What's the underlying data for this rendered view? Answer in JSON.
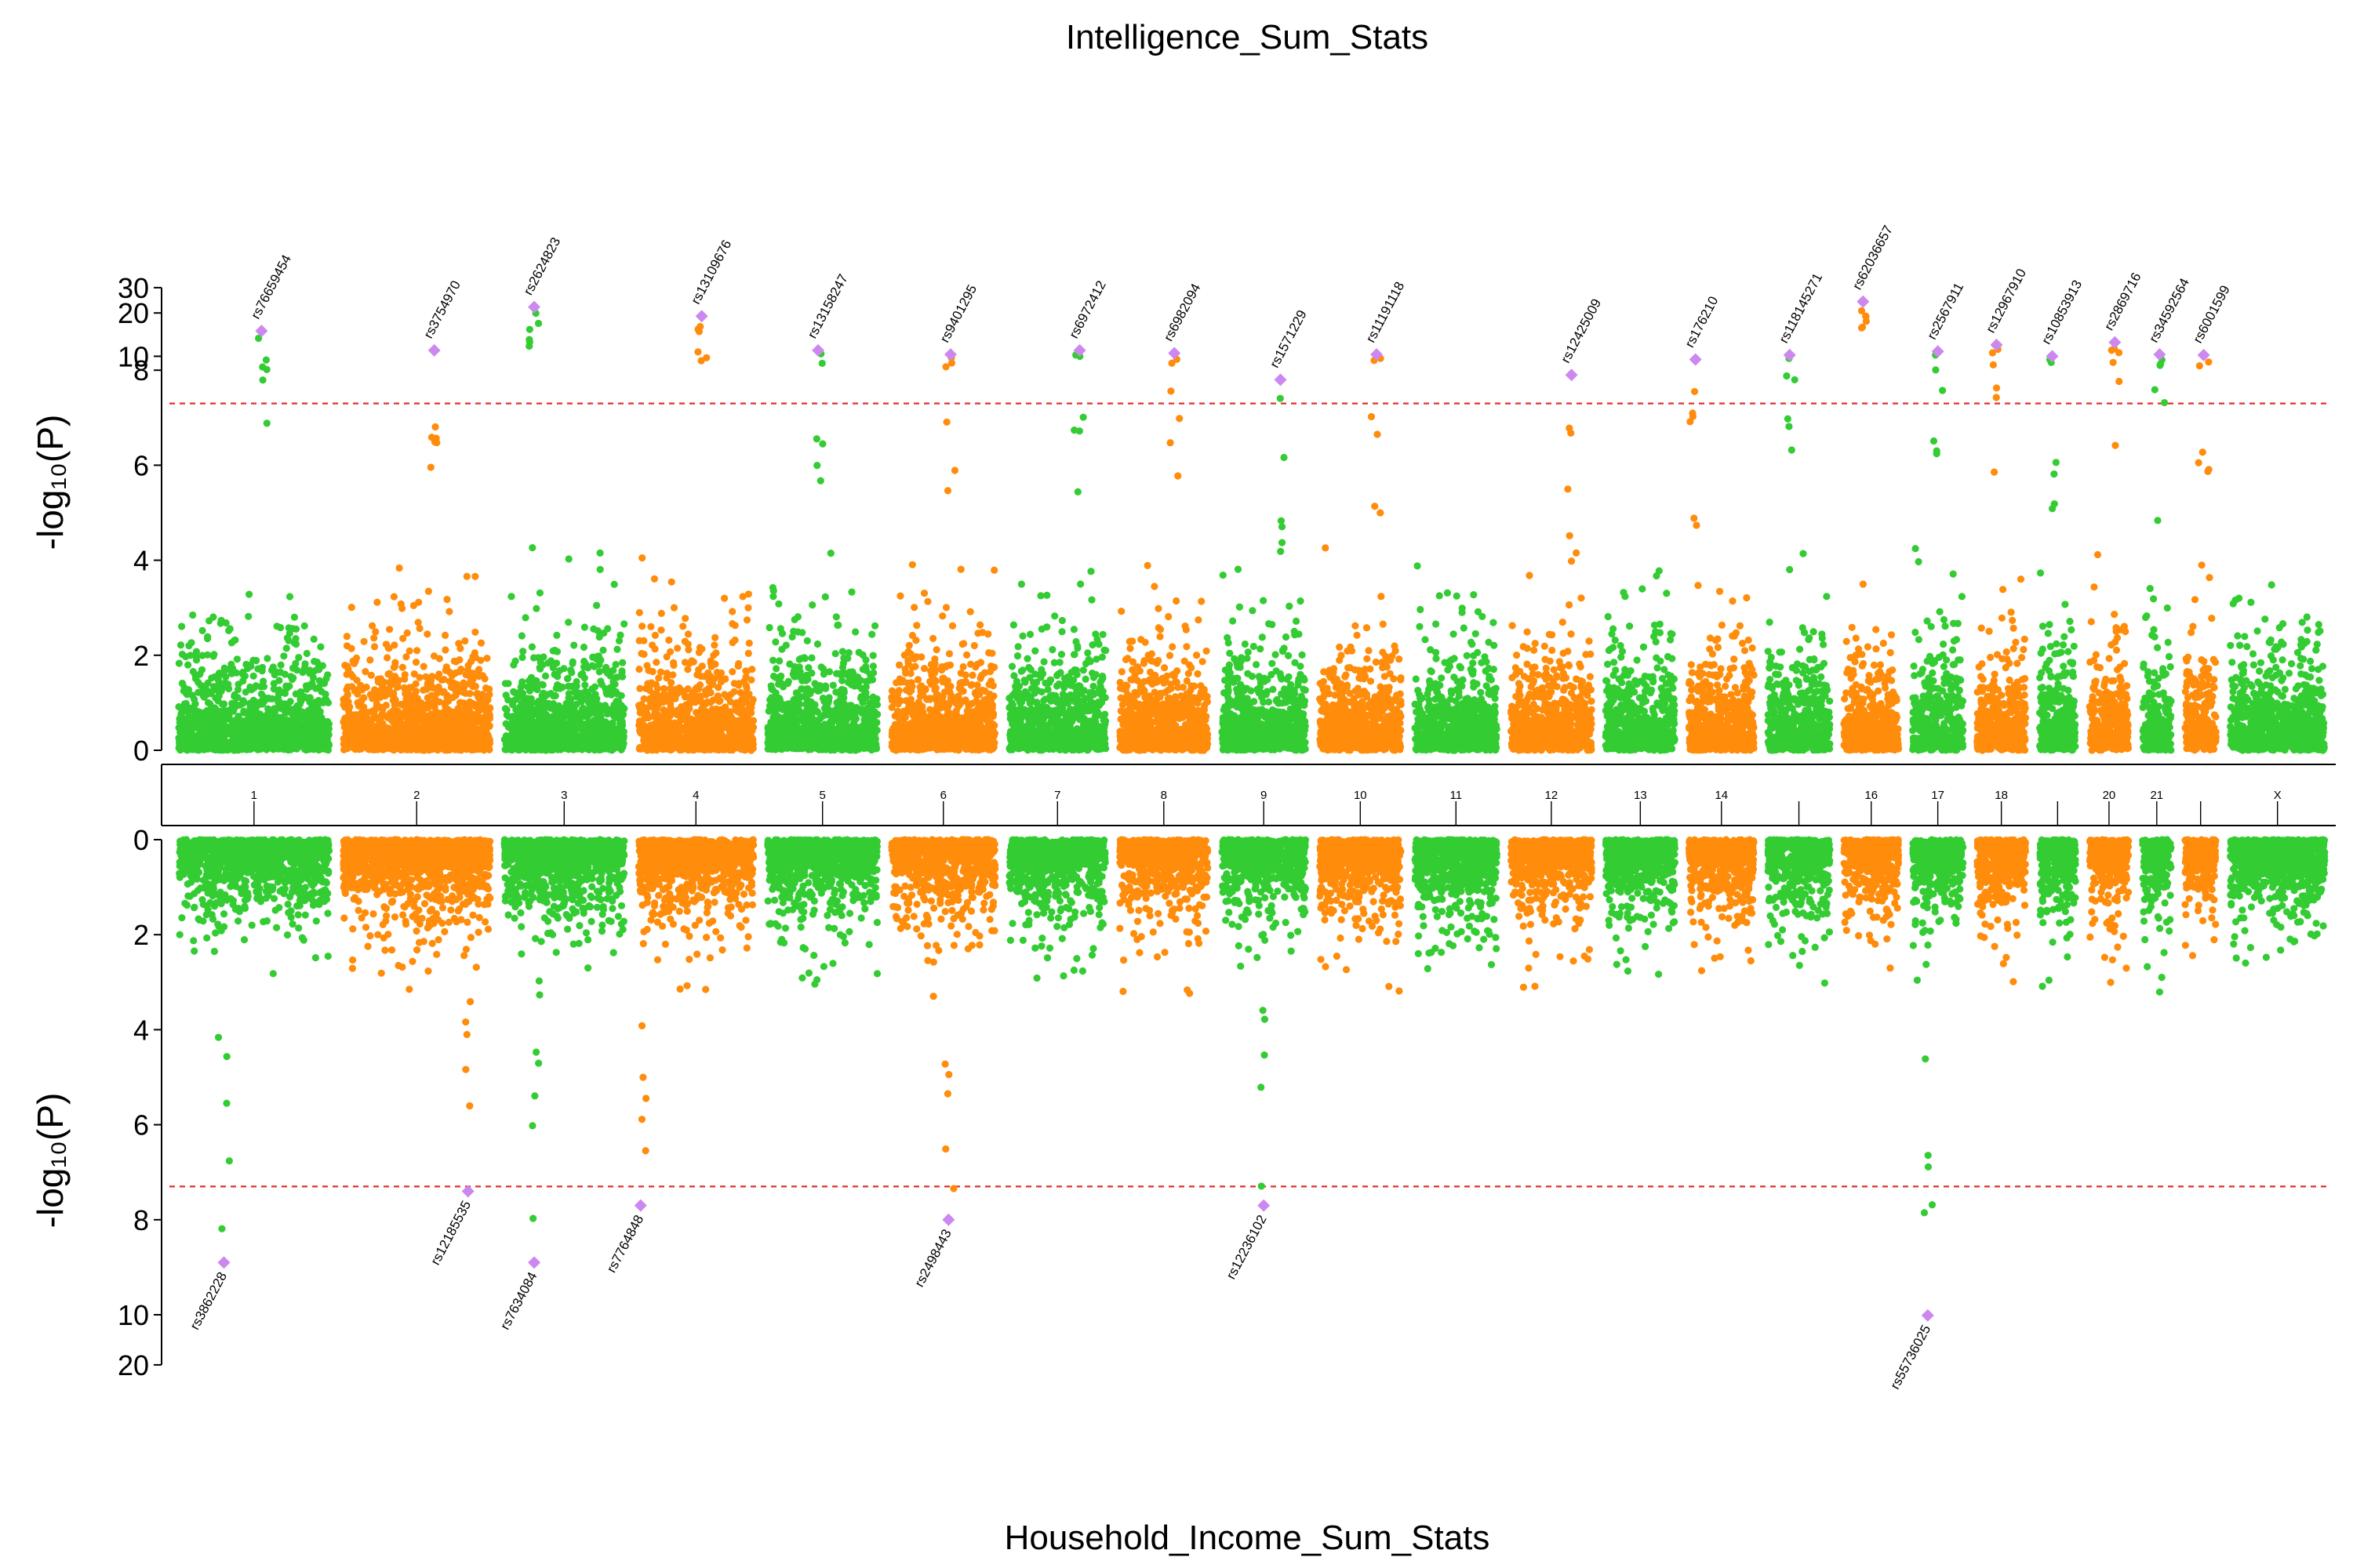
{
  "chart_data": {
    "type": "scatter",
    "subtype": "miami-manhattan",
    "colors": {
      "odd_chromosome": "#33cc33",
      "even_chromosome": "#ff8c0a",
      "highlight": "#cc88ee",
      "threshold_line": "#e0302a"
    },
    "chromosomes": [
      "1",
      "2",
      "3",
      "4",
      "5",
      "6",
      "7",
      "8",
      "9",
      "10",
      "11",
      "12",
      "13",
      "14",
      "15",
      "16",
      "17",
      "18",
      "19",
      "20",
      "21",
      "22",
      "X"
    ],
    "chromosome_axis_labels": [
      "1",
      "2",
      "3",
      "4",
      "5",
      "6",
      "7",
      "8",
      "9",
      "10",
      "11",
      "12",
      "13",
      "14",
      "",
      "16",
      "17",
      "18",
      "",
      "20",
      "21",
      "",
      "X"
    ],
    "genome_wide_threshold": 7.3,
    "top": {
      "title": "Intelligence_Sum_Stats",
      "ylabel": "-log₁₀(P)",
      "yticks": [
        "0",
        "2",
        "4",
        "6",
        "8",
        "10",
        "20",
        "30"
      ],
      "scale": "linear 0–8, log-compressed above 8",
      "hits": [
        {
          "snp": "rs76659454",
          "chrom": "1",
          "pos": 0.55,
          "logp": 15
        },
        {
          "snp": "rs3754970",
          "chrom": "2",
          "pos": 0.62,
          "logp": 11
        },
        {
          "snp": "rs2624823",
          "chrom": "3",
          "pos": 0.25,
          "logp": 22
        },
        {
          "snp": "rs13109676",
          "chrom": "4",
          "pos": 0.55,
          "logp": 19
        },
        {
          "snp": "rs13158247",
          "chrom": "5",
          "pos": 0.46,
          "logp": 11
        },
        {
          "snp": "rs9401295",
          "chrom": "6",
          "pos": 0.57,
          "logp": 10.3
        },
        {
          "snp": "rs6972412",
          "chrom": "7",
          "pos": 0.73,
          "logp": 11
        },
        {
          "snp": "rs6982094",
          "chrom": "8",
          "pos": 0.62,
          "logp": 10.5
        },
        {
          "snp": "rs1571229",
          "chrom": "9",
          "pos": 0.7,
          "logp": 7.8
        },
        {
          "snp": "rs11191118",
          "chrom": "10",
          "pos": 0.7,
          "logp": 10.3
        },
        {
          "snp": "rs12425009",
          "chrom": "12",
          "pos": 0.75,
          "logp": 7.9
        },
        {
          "snp": "rs176210",
          "chrom": "14",
          "pos": 0.1,
          "logp": 9.5
        },
        {
          "snp": "rs118145271",
          "chrom": "15",
          "pos": 0.35,
          "logp": 10.2
        },
        {
          "snp": "rs62036657",
          "chrom": "16",
          "pos": 0.35,
          "logp": 24
        },
        {
          "snp": "rs2567911",
          "chrom": "17",
          "pos": 0.5,
          "logp": 10.8
        },
        {
          "snp": "rs12967910",
          "chrom": "18",
          "pos": 0.4,
          "logp": 12
        },
        {
          "snp": "rs10853913",
          "chrom": "19",
          "pos": 0.35,
          "logp": 10
        },
        {
          "snp": "rs2869716",
          "chrom": "20",
          "pos": 0.65,
          "logp": 12.5
        },
        {
          "snp": "rs34592564",
          "chrom": "21",
          "pos": 0.6,
          "logp": 10.3
        },
        {
          "snp": "rs6001599",
          "chrom": "22",
          "pos": 0.6,
          "logp": 10.2
        }
      ]
    },
    "bottom": {
      "title": "Household_Income_Sum_Stats",
      "ylabel": "-log₁₀(P)",
      "yticks": [
        "0",
        "2",
        "4",
        "6",
        "8",
        "10",
        "20"
      ],
      "scale": "inverted; linear 0–10, log-compressed above 10",
      "hits": [
        {
          "snp": "rs3862228",
          "chrom": "1",
          "pos": 0.3,
          "logp": 8.9
        },
        {
          "snp": "rs12185535",
          "chrom": "2",
          "pos": 0.85,
          "logp": 7.4
        },
        {
          "snp": "rs7634084",
          "chrom": "3",
          "pos": 0.25,
          "logp": 8.9
        },
        {
          "snp": "rs7764848",
          "chrom": "4",
          "pos": 0.02,
          "logp": 7.7
        },
        {
          "snp": "rs2498443",
          "chrom": "6",
          "pos": 0.55,
          "logp": 8
        },
        {
          "snp": "rs12236102",
          "chrom": "9",
          "pos": 0.5,
          "logp": 7.7
        },
        {
          "snp": "rs55736025",
          "chrom": "17",
          "pos": 0.3,
          "logp": 10.1
        }
      ]
    }
  }
}
